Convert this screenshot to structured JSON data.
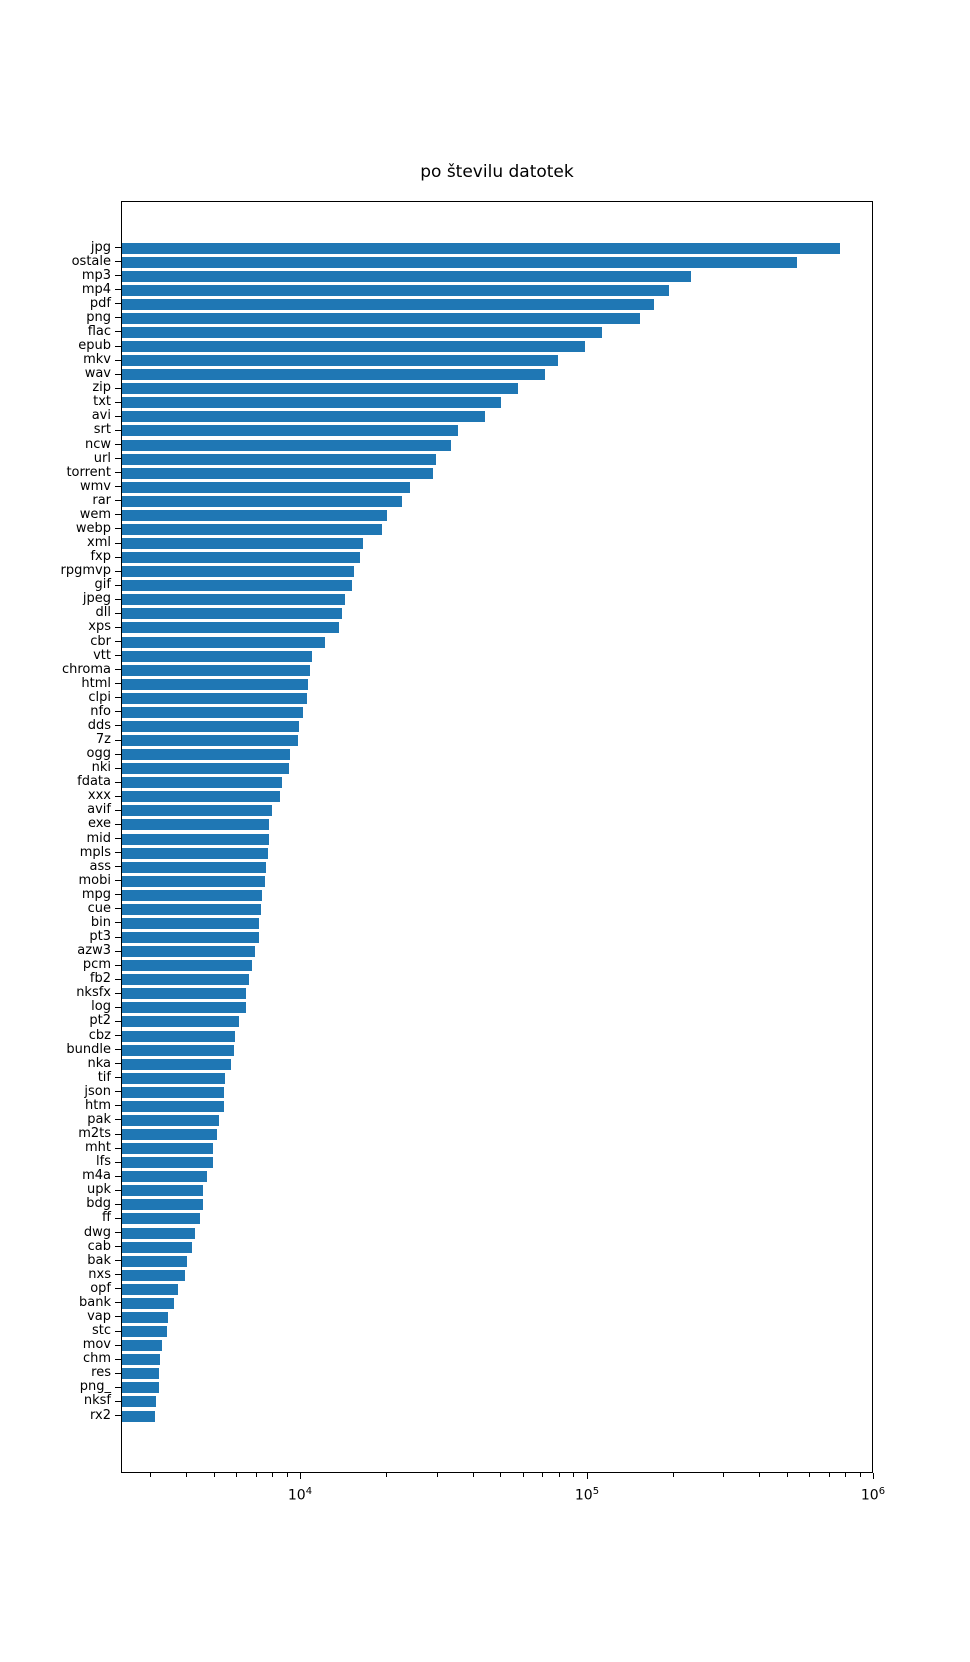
{
  "figure": {
    "background": "#ffffff",
    "text_color": "#000000"
  },
  "chart_data": {
    "type": "bar",
    "orientation": "horizontal",
    "title": "po številu datotek",
    "xlabel": "",
    "ylabel": "",
    "x_scale": "log",
    "x_range": [
      2372,
      1000000
    ],
    "grid": false,
    "legend": null,
    "bar_color": "#1f77b4",
    "x_major_ticks": [
      {
        "value": 10000,
        "base": "10",
        "exp": "4"
      },
      {
        "value": 100000,
        "base": "10",
        "exp": "5"
      },
      {
        "value": 1000000,
        "base": "10",
        "exp": "6"
      }
    ],
    "categories": [
      "jpg",
      "ostale",
      "mp3",
      "mp4",
      "pdf",
      "png",
      "flac",
      "epub",
      "mkv",
      "wav",
      "zip",
      "txt",
      "avi",
      "srt",
      "ncw",
      "url",
      "torrent",
      "wmv",
      "rar",
      "wem",
      "webp",
      "xml",
      "fxp",
      "rpgmvp",
      "gif",
      "jpeg",
      "dll",
      "xps",
      "cbr",
      "vtt",
      "chroma",
      "html",
      "clpi",
      "nfo",
      "dds",
      "7z",
      "ogg",
      "nki",
      "fdata",
      "xxx",
      "avif",
      "exe",
      "mid",
      "mpls",
      "ass",
      "mobi",
      "mpg",
      "cue",
      "bin",
      "pt3",
      "azw3",
      "pcm",
      "fb2",
      "nksfx",
      "log",
      "pt2",
      "cbz",
      "bundle",
      "nka",
      "tif",
      "json",
      "htm",
      "pak",
      "m2ts",
      "mht",
      "lfs",
      "m4a",
      "upk",
      "bdg",
      "ff",
      "dwg",
      "cab",
      "bak",
      "nxs",
      "opf",
      "bank",
      "vap",
      "stc",
      "mov",
      "chm",
      "res",
      "png_",
      "nksf",
      "rx2"
    ],
    "values": [
      760000,
      540000,
      230000,
      193000,
      170000,
      153000,
      112000,
      98000,
      79000,
      71000,
      57000,
      50000,
      44000,
      35300,
      33500,
      29500,
      29000,
      24000,
      22600,
      19900,
      19200,
      16500,
      16100,
      15300,
      15100,
      14200,
      13900,
      13600,
      12100,
      10900,
      10750,
      10600,
      10500,
      10160,
      9840,
      9760,
      9150,
      9080,
      8580,
      8460,
      7920,
      7760,
      7740,
      7690,
      7550,
      7510,
      7310,
      7270,
      7140,
      7120,
      6910,
      6750,
      6570,
      6430,
      6420,
      6080,
      5870,
      5830,
      5700,
      5430,
      5400,
      5370,
      5180,
      5110,
      4940,
      4910,
      4680,
      4560,
      4550,
      4440,
      4260,
      4150,
      3990,
      3920,
      3720,
      3590,
      3430,
      3400,
      3270,
      3210,
      3200,
      3190,
      3120,
      3090
    ]
  }
}
